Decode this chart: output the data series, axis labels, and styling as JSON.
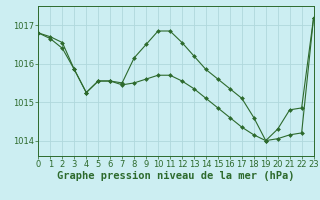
{
  "xlabel": "Graphe pression niveau de la mer (hPa)",
  "ylabel": "",
  "bg_color": "#cceef2",
  "grid_color": "#b0d8dc",
  "line_color": "#2d6a2d",
  "marker_color": "#2d6a2d",
  "xlim": [
    0,
    23
  ],
  "ylim": [
    1013.6,
    1017.5
  ],
  "yticks": [
    1014,
    1015,
    1016,
    1017
  ],
  "xticks": [
    0,
    1,
    2,
    3,
    4,
    5,
    6,
    7,
    8,
    9,
    10,
    11,
    12,
    13,
    14,
    15,
    16,
    17,
    18,
    19,
    20,
    21,
    22,
    23
  ],
  "series1_x": [
    0,
    1,
    2,
    3,
    4,
    5,
    6,
    7,
    8,
    9,
    10,
    11,
    12,
    13,
    14,
    15,
    16,
    17,
    18,
    19,
    20,
    21,
    22,
    23
  ],
  "series1_y": [
    1016.8,
    1016.7,
    1016.55,
    1015.85,
    1015.25,
    1015.55,
    1015.55,
    1015.5,
    1016.15,
    1016.5,
    1016.85,
    1016.85,
    1016.55,
    1016.2,
    1015.85,
    1015.6,
    1015.35,
    1015.1,
    1014.6,
    1014.0,
    1014.3,
    1014.8,
    1014.85,
    1017.2
  ],
  "series2_x": [
    0,
    1,
    2,
    3,
    4,
    5,
    6,
    7,
    8,
    9,
    10,
    11,
    12,
    13,
    14,
    15,
    16,
    17,
    18,
    19,
    20,
    21,
    22,
    23
  ],
  "series2_y": [
    1016.8,
    1016.65,
    1016.4,
    1015.85,
    1015.25,
    1015.55,
    1015.55,
    1015.45,
    1015.5,
    1015.6,
    1015.7,
    1015.7,
    1015.55,
    1015.35,
    1015.1,
    1014.85,
    1014.6,
    1014.35,
    1014.15,
    1014.0,
    1014.05,
    1014.15,
    1014.2,
    1017.2
  ],
  "xlabel_fontsize": 7.5,
  "tick_fontsize": 6,
  "xlabel_color": "#2d6a2d",
  "tick_color": "#2d6a2d",
  "ytick_label_fontsize": 6
}
